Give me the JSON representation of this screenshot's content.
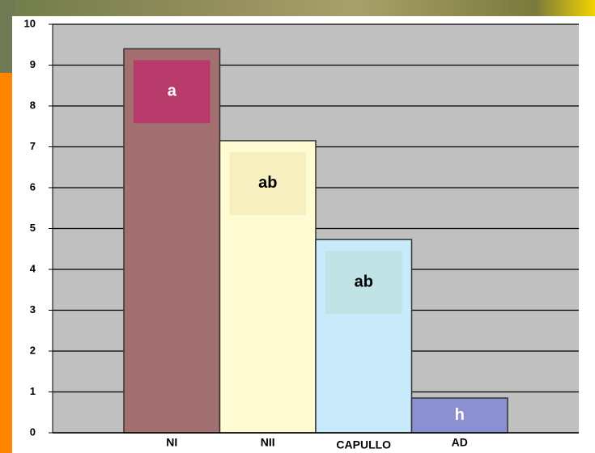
{
  "chart_data": {
    "type": "bar",
    "categories": [
      "NI",
      "NII",
      "CAPULLO",
      "AD"
    ],
    "values": [
      9.4,
      7.15,
      4.73,
      0.85
    ],
    "colors": [
      "#a27070",
      "#fffbd2",
      "#c8eafa",
      "#8a90d2"
    ],
    "annotations": [
      "a",
      "ab",
      "ab",
      "h"
    ],
    "annotation_colors": [
      "#b83a6a",
      "#f8efc0",
      "#c0e4e6",
      "#8a90d2"
    ],
    "annotation_text_colors": [
      "#ffffff",
      "#000000",
      "#000000",
      "#ffffff"
    ],
    "ylim": [
      0,
      10
    ],
    "yticks": [
      0,
      1,
      2,
      3,
      4,
      5,
      6,
      7,
      8,
      9,
      10
    ],
    "grid": true
  }
}
